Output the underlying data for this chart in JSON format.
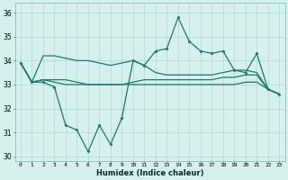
{
  "xlabel": "Humidex (Indice chaleur)",
  "x": [
    0,
    1,
    2,
    3,
    4,
    5,
    6,
    7,
    8,
    9,
    10,
    11,
    12,
    13,
    14,
    15,
    16,
    17,
    18,
    19,
    20,
    21,
    22,
    23
  ],
  "line1": [
    33.9,
    33.1,
    33.1,
    32.9,
    31.3,
    31.1,
    30.2,
    31.3,
    30.5,
    31.6,
    34.0,
    33.8,
    34.4,
    34.5,
    35.8,
    34.8,
    34.4,
    34.3,
    34.4,
    33.6,
    33.5,
    34.3,
    32.8,
    32.6
  ],
  "line2": [
    33.9,
    33.1,
    34.2,
    34.2,
    34.1,
    34.0,
    34.0,
    33.9,
    33.8,
    33.9,
    34.0,
    33.8,
    33.5,
    33.4,
    33.4,
    33.4,
    33.4,
    33.4,
    33.5,
    33.6,
    33.6,
    33.5,
    32.8,
    32.6
  ],
  "line3": [
    33.9,
    33.1,
    33.2,
    33.2,
    33.2,
    33.1,
    33.0,
    33.0,
    33.0,
    33.0,
    33.1,
    33.2,
    33.2,
    33.2,
    33.2,
    33.2,
    33.2,
    33.2,
    33.3,
    33.3,
    33.4,
    33.4,
    32.8,
    32.6
  ],
  "line4": [
    33.9,
    33.1,
    33.2,
    33.1,
    33.0,
    33.0,
    33.0,
    33.0,
    33.0,
    33.0,
    33.0,
    33.0,
    33.0,
    33.0,
    33.0,
    33.0,
    33.0,
    33.0,
    33.0,
    33.0,
    33.1,
    33.1,
    32.8,
    32.6
  ],
  "line_color": "#1a7a6a",
  "bg_color": "#d6f0ee",
  "grid_color": "#b0d8d0",
  "ylim": [
    29.8,
    36.4
  ],
  "yticks": [
    30,
    31,
    32,
    33,
    34,
    35,
    36
  ],
  "xlim": [
    -0.5,
    23.5
  ]
}
